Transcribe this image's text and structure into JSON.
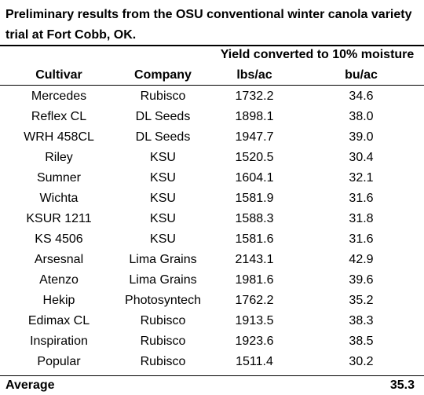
{
  "title": "Preliminary results from the OSU conventional winter canola variety trial at Fort Cobb, OK.",
  "group_header": "Yield converted to 10% moisture",
  "columns": [
    "Cultivar",
    "Company",
    "lbs/ac",
    "bu/ac"
  ],
  "rows": [
    [
      "Mercedes",
      "Rubisco",
      "1732.2",
      "34.6"
    ],
    [
      "Reflex CL",
      "DL Seeds",
      "1898.1",
      "38.0"
    ],
    [
      "WRH 458CL",
      "DL Seeds",
      "1947.7",
      "39.0"
    ],
    [
      "Riley",
      "KSU",
      "1520.5",
      "30.4"
    ],
    [
      "Sumner",
      "KSU",
      "1604.1",
      "32.1"
    ],
    [
      "Wichta",
      "KSU",
      "1581.9",
      "31.6"
    ],
    [
      "KSUR 1211",
      "KSU",
      "1588.3",
      "31.8"
    ],
    [
      "KS 4506",
      "KSU",
      "1581.6",
      "31.6"
    ],
    [
      "Arsesnal",
      "Lima Grains",
      "2143.1",
      "42.9"
    ],
    [
      "Atenzo",
      "Lima Grains",
      "1981.6",
      "39.6"
    ],
    [
      "Hekip",
      "Photosyntech",
      "1762.2",
      "35.2"
    ],
    [
      "Edimax CL",
      "Rubisco",
      "1913.5",
      "38.3"
    ],
    [
      "Inspiration",
      "Rubisco",
      "1923.6",
      "38.5"
    ],
    [
      "Popular",
      "Rubisco",
      "1511.4",
      "30.2"
    ]
  ],
  "average": {
    "label": "Average",
    "value": "35.3"
  }
}
